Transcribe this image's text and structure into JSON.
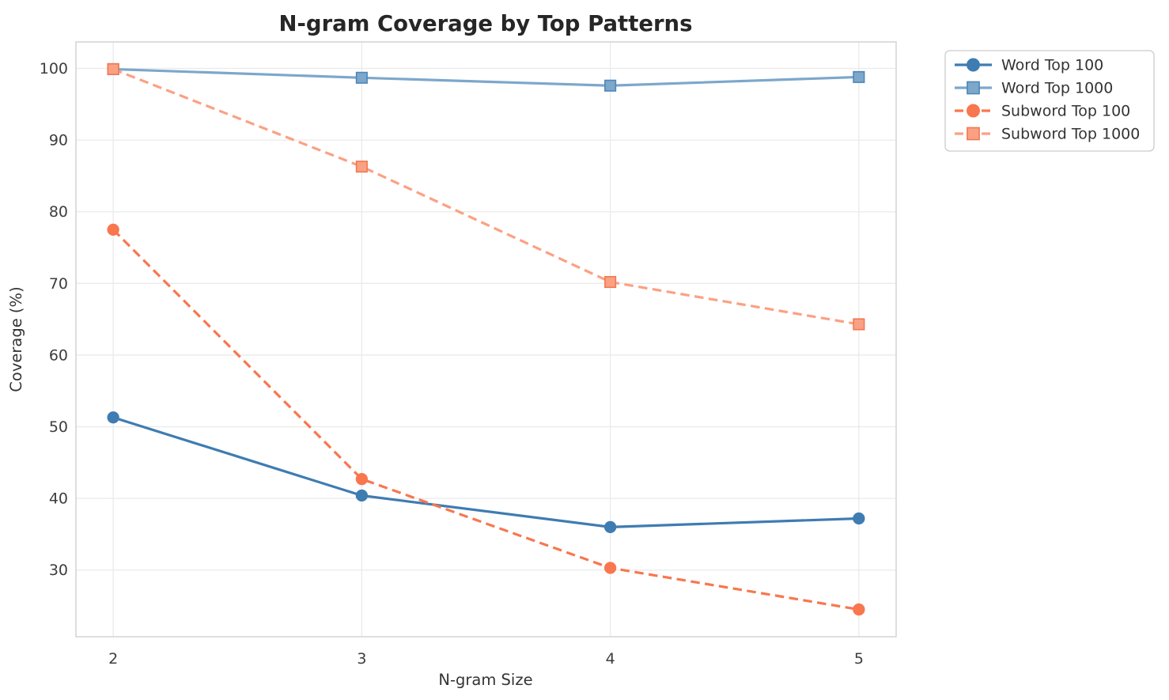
{
  "chart_data": {
    "type": "line",
    "title": "N-gram Coverage by Top Patterns",
    "xlabel": "N-gram Size",
    "ylabel": "Coverage (%)",
    "x": [
      2,
      3,
      4,
      5
    ],
    "xtick_labels": [
      "2",
      "3",
      "4",
      "5"
    ],
    "yticks": [
      30,
      40,
      50,
      60,
      70,
      80,
      90,
      100
    ],
    "xlim": [
      1.85,
      5.15
    ],
    "ylim": [
      20.7,
      103.7
    ],
    "grid": true,
    "legend_position": "outside-upper-right",
    "series": [
      {
        "name": "Word Top 100",
        "values": [
          51.3,
          40.4,
          36.0,
          37.2
        ],
        "color": "#3e7cb1",
        "marker_edge": "#3e7cb1",
        "marker": "circle",
        "line_style": "solid"
      },
      {
        "name": "Word Top 1000",
        "values": [
          99.9,
          98.7,
          97.6,
          98.8
        ],
        "color": "#7da7cb",
        "marker_edge": "#4d87b8",
        "marker": "square",
        "line_style": "solid"
      },
      {
        "name": "Subword Top 100",
        "values": [
          77.5,
          42.7,
          30.3,
          24.5
        ],
        "color": "#f8774e",
        "marker_edge": "#f8774e",
        "marker": "circle",
        "line_style": "dashed"
      },
      {
        "name": "Subword Top 1000",
        "values": [
          99.9,
          86.3,
          70.2,
          64.3
        ],
        "color": "#fba183",
        "marker_edge": "#f07850",
        "marker": "square",
        "line_style": "dashed"
      }
    ],
    "style_colors": {
      "grid": "#eaeaea",
      "spine": "#d4d4d4",
      "title_text": "#262626",
      "tick_text": "#3d3d3d",
      "label_text": "#333333",
      "legend_border": "#cccccc",
      "legend_bg": "#ffffff",
      "background": "#ffffff"
    }
  }
}
